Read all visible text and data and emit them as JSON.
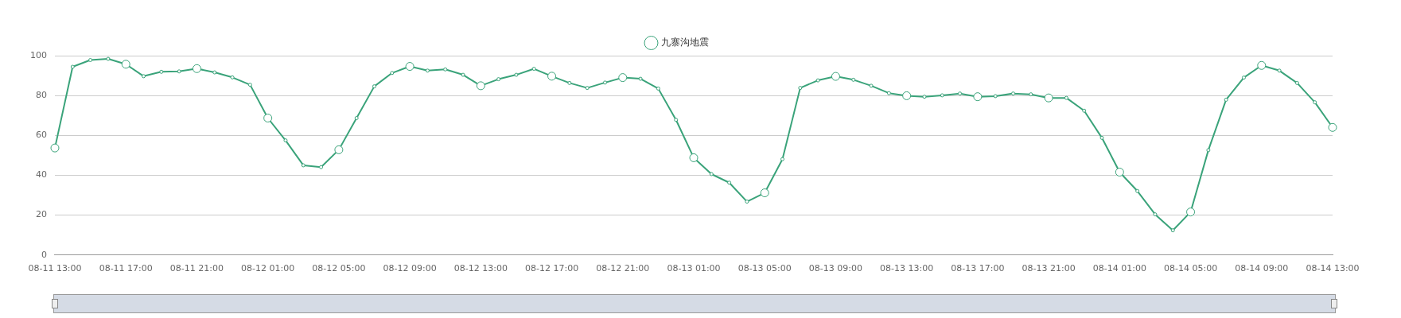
{
  "chart_data": {
    "type": "line",
    "categories": [
      "08-11 13:00",
      null,
      null,
      null,
      "08-11 17:00",
      null,
      null,
      null,
      "08-11 21:00",
      null,
      null,
      null,
      "08-12 01:00",
      null,
      null,
      null,
      "08-12 05:00",
      null,
      null,
      null,
      "08-12 09:00",
      null,
      null,
      null,
      "08-12 13:00",
      null,
      null,
      null,
      "08-12 17:00",
      null,
      null,
      null,
      "08-12 21:00",
      null,
      null,
      null,
      "08-13 01:00",
      null,
      null,
      null,
      "08-13 05:00",
      null,
      null,
      null,
      "08-13 09:00",
      null,
      null,
      null,
      "08-13 13:00",
      null,
      null,
      null,
      "08-13 17:00",
      null,
      null,
      null,
      "08-13 21:00",
      null,
      null,
      null,
      "08-14 01:00",
      null,
      null,
      null,
      "08-14 05:00",
      null,
      null,
      null,
      "08-14 09:00",
      null,
      null,
      null,
      "08-14 13:00"
    ],
    "series": [
      {
        "name": "九寨沟地震",
        "color": "#3aa37a",
        "values": [
          53.7,
          94.4,
          97.8,
          98.4,
          95.7,
          89.7,
          91.9,
          92.1,
          93.5,
          91.6,
          89.1,
          85.4,
          68.7,
          57.5,
          45.0,
          44.1,
          52.8,
          68.7,
          84.6,
          91.3,
          94.6,
          92.5,
          93.1,
          90.4,
          84.9,
          88.2,
          90.4,
          93.4,
          89.7,
          86.3,
          83.8,
          86.5,
          89.0,
          88.4,
          83.5,
          67.8,
          48.8,
          40.6,
          36.3,
          26.8,
          31.2,
          48.1,
          83.8,
          87.6,
          89.6,
          87.9,
          84.9,
          81.2,
          79.9,
          79.4,
          80.1,
          81.0,
          79.4,
          79.7,
          81.0,
          80.6,
          78.8,
          78.8,
          72.4,
          58.8,
          41.6,
          32.1,
          20.4,
          12.4,
          21.6,
          52.6,
          77.9,
          89.0,
          95.1,
          92.5,
          86.3,
          76.6,
          64.0
        ]
      }
    ],
    "ylim": [
      0,
      100
    ],
    "yticks": [
      0,
      20,
      40,
      60,
      80,
      100
    ],
    "grid": "y",
    "legend": "top",
    "marker": "circle",
    "line_style": "solid"
  }
}
